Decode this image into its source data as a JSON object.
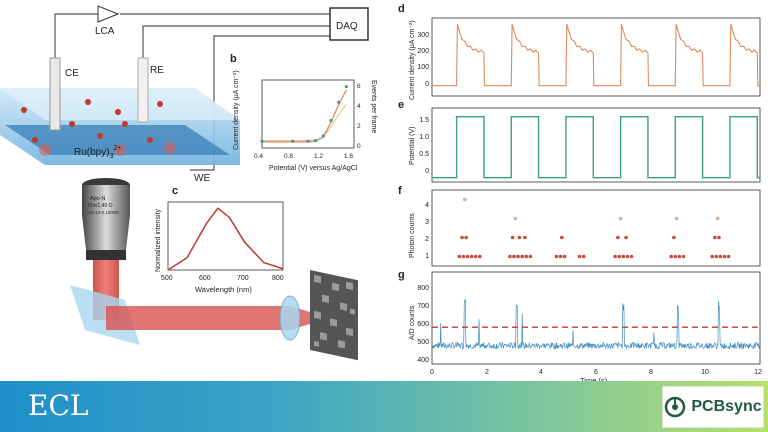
{
  "panel_letters": {
    "b": "b",
    "c": "c",
    "d": "d",
    "e": "e",
    "f": "f",
    "g": "g"
  },
  "setup": {
    "lca": "LCA",
    "daq": "DAQ",
    "ce": "CE",
    "re": "RE",
    "we": "WE",
    "ru_label": "Ru(bpy)",
    "ru_sub": "3",
    "ru_sup": "2+",
    "objective_lines": [
      "Apo N",
      "60x/1.49 O",
      "∞/0.13-0.19/WD"
    ]
  },
  "panel_b": {
    "ylabel": "Current density (μA cm⁻²)",
    "y2label": "Events per frame",
    "xlabel": "Potential (V) versus Ag/AgCl",
    "xticks": [
      "0.4",
      "0.8",
      "1.2",
      "1.6"
    ],
    "y2ticks": [
      "6",
      "4",
      "2",
      "0"
    ]
  },
  "panel_c": {
    "ylabel": "Normalized intensity",
    "xlabel": "Wavelength (nm)",
    "xticks": [
      "500",
      "600",
      "700",
      "800"
    ]
  },
  "panel_d": {
    "ylabel": "Current density (μA cm⁻²)",
    "yticks": [
      "300",
      "200",
      "100",
      "0"
    ]
  },
  "panel_e": {
    "ylabel": "Potential (V)",
    "yticks": [
      "1.5",
      "1.0",
      "0.5",
      "0"
    ]
  },
  "panel_f": {
    "ylabel": "Photon counts",
    "yticks": [
      "4",
      "3",
      "2",
      "1"
    ]
  },
  "panel_g": {
    "ylabel": "A/D counts",
    "yticks": [
      "800",
      "700",
      "600",
      "500",
      "400"
    ],
    "xlabel": "Time (s)",
    "xticks": [
      "0",
      "2",
      "4",
      "6",
      "8",
      "10",
      "12"
    ]
  },
  "banner": {
    "title": "ECL",
    "brand": "PCBsync"
  },
  "colors": {
    "orange": "#e08a5c",
    "teal": "#3c9e86",
    "red": "#c0392b",
    "blue": "#1f78b4",
    "banner_start": "#1f8fc9",
    "banner_end": "#b6e06a"
  },
  "chart_data": [
    {
      "type": "line",
      "xlabel": "Potential (V) versus Ag/AgCl",
      "ylabel": "Current density (μA cm⁻²)",
      "xlim": [
        0.4,
        1.6
      ],
      "series": [
        {
          "x": [
            0.4,
            0.8,
            1.0,
            1.1,
            1.2,
            1.3,
            1.4,
            1.5
          ],
          "values": [
            0,
            0,
            0,
            0.05,
            0.4,
            1.6,
            3.0,
            4.2
          ]
        }
      ]
    },
    {
      "type": "line",
      "xlabel": "Wavelength (nm)",
      "ylabel": "Normalized intensity",
      "xlim": [
        500,
        800
      ],
      "series": [
        {
          "x": [
            500,
            550,
            600,
            630,
            660,
            700,
            750,
            800
          ],
          "values": [
            0.0,
            0.2,
            0.75,
            1.0,
            0.85,
            0.45,
            0.12,
            0.02
          ]
        }
      ]
    },
    {
      "type": "line",
      "ylabel": "Current density (μA cm⁻²)",
      "xlim": [
        0,
        12
      ],
      "ylim": [
        -50,
        330
      ],
      "series": [
        {
          "x": [
            0.8,
            0.85,
            1.8,
            1.85,
            2.8,
            2.85,
            3.8,
            3.85,
            4.8,
            4.85,
            5.8,
            5.85,
            6.8,
            6.85,
            7.8,
            7.85,
            8.8,
            8.85,
            9.8,
            9.85,
            10.8,
            10.85,
            11.8
          ],
          "values": [
            0,
            300,
            150,
            0,
            0,
            300,
            150,
            0,
            0,
            300,
            150,
            0,
            0,
            300,
            150,
            0,
            0,
            300,
            150,
            0,
            0,
            300,
            150
          ]
        }
      ]
    },
    {
      "type": "line",
      "ylabel": "Potential (V)",
      "xlim": [
        0,
        12
      ],
      "ylim": [
        -0.1,
        1.6
      ],
      "series": [
        {
          "x": [
            0,
            0.9,
            0.9,
            1.9,
            1.9,
            2.9,
            2.9,
            3.9,
            3.9,
            4.9,
            4.9,
            5.9,
            5.9,
            6.9,
            6.9,
            7.9,
            7.9,
            8.9,
            8.9,
            9.9,
            9.9,
            10.9,
            10.9,
            11.9,
            11.9,
            12
          ],
          "values": [
            0,
            0,
            1.4,
            1.4,
            0,
            0,
            1.4,
            1.4,
            0,
            0,
            1.4,
            1.4,
            0,
            0,
            1.4,
            1.4,
            0,
            0,
            1.4,
            1.4,
            0,
            0,
            1.4,
            1.4,
            0,
            0
          ]
        }
      ]
    },
    {
      "type": "scatter",
      "ylabel": "Photon counts",
      "xlim": [
        0,
        12
      ],
      "ylim": [
        0.5,
        4.5
      ],
      "x": [
        1.0,
        1.15,
        1.3,
        1.45,
        1.6,
        1.75,
        1.1,
        1.25,
        1.2,
        2.85,
        3.0,
        3.15,
        3.3,
        3.45,
        3.6,
        2.95,
        3.2,
        3.4,
        3.05,
        4.55,
        4.7,
        4.85,
        4.75,
        5.4,
        5.55,
        6.7,
        6.85,
        7.0,
        7.15,
        7.3,
        6.8,
        7.1,
        6.9,
        8.75,
        8.9,
        9.05,
        9.2,
        8.85,
        8.95,
        10.25,
        10.4,
        10.55,
        10.7,
        10.85,
        10.35,
        10.5,
        10.45
      ],
      "y": [
        1,
        1,
        1,
        1,
        1,
        1,
        2,
        2,
        4,
        1,
        1,
        1,
        1,
        1,
        1,
        2,
        2,
        2,
        3,
        1,
        1,
        1,
        2,
        1,
        1,
        1,
        1,
        1,
        1,
        1,
        2,
        2,
        3,
        1,
        1,
        1,
        1,
        2,
        3,
        1,
        1,
        1,
        1,
        1,
        2,
        2,
        3
      ]
    },
    {
      "type": "line",
      "xlabel": "Time (s)",
      "ylabel": "A/D counts",
      "xlim": [
        0,
        12
      ],
      "ylim": [
        350,
        850
      ],
      "threshold": 550,
      "series": [
        {
          "x": [
            0,
            1,
            1.2,
            2,
            3,
            3.1,
            4,
            5,
            6.8,
            7,
            8,
            8.9,
            9,
            10.3,
            10.5,
            12
          ],
          "values": [
            450,
            460,
            720,
            450,
            450,
            700,
            455,
            450,
            450,
            690,
            450,
            450,
            680,
            450,
            700,
            455
          ]
        }
      ]
    }
  ]
}
